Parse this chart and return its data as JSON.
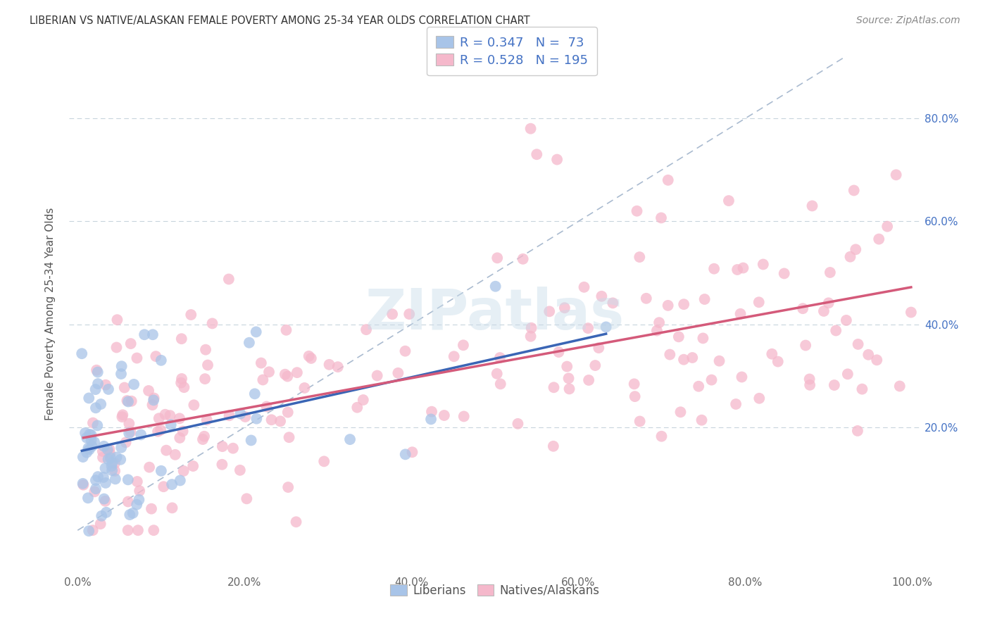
{
  "title": "LIBERIAN VS NATIVE/ALASKAN FEMALE POVERTY AMONG 25-34 YEAR OLDS CORRELATION CHART",
  "source": "Source: ZipAtlas.com",
  "ylabel": "Female Poverty Among 25-34 Year Olds",
  "xlim": [
    -0.01,
    1.01
  ],
  "ylim": [
    -0.08,
    0.92
  ],
  "xticks": [
    0.0,
    0.2,
    0.4,
    0.6,
    0.8,
    1.0
  ],
  "xtick_labels": [
    "0.0%",
    "20.0%",
    "40.0%",
    "60.0%",
    "80.0%",
    "100.0%"
  ],
  "yticks": [
    0.2,
    0.4,
    0.6,
    0.8
  ],
  "ytick_labels": [
    "20.0%",
    "40.0%",
    "60.0%",
    "80.0%"
  ],
  "r_liberian": 0.347,
  "n_liberian": 73,
  "r_native": 0.528,
  "n_native": 195,
  "liberian_color": "#a8c4e8",
  "native_color": "#f5b8cb",
  "liberian_line_color": "#3a65b5",
  "native_line_color": "#d45a7a",
  "diagonal_color": "#aabbd0",
  "background_color": "#ffffff",
  "grid_color": "#c8d4dc",
  "watermark_color": "#c8dcea",
  "legend_text_color": "#4472c4",
  "tick_color": "#666666",
  "title_color": "#333333",
  "source_color": "#888888"
}
